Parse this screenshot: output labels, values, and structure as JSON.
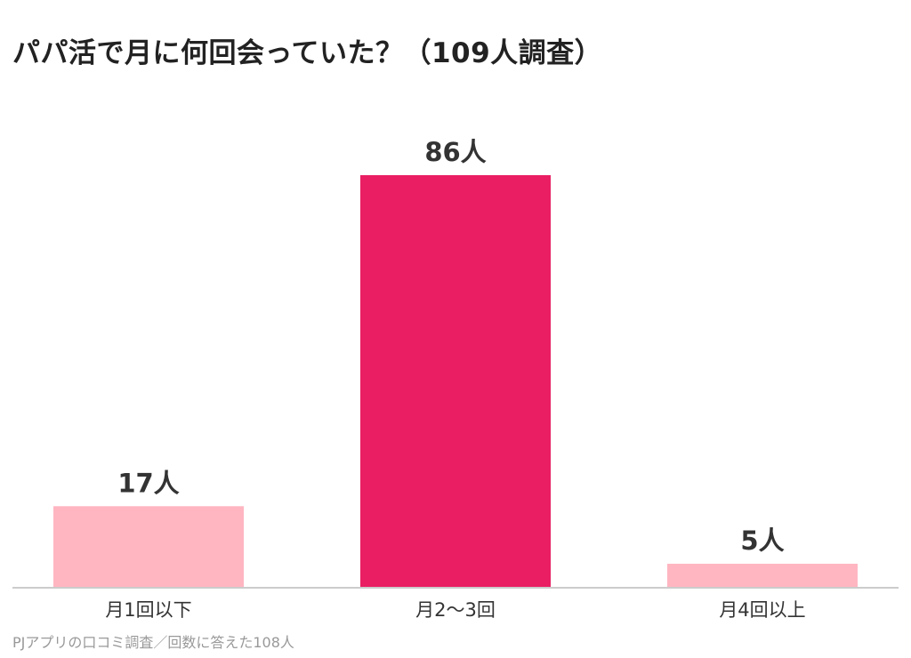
{
  "chart_data": {
    "type": "bar",
    "title": "パパ活で月に何回会っていた？（109人調査）",
    "categories": [
      "月1回以下",
      "月2〜3回",
      "月4回以上"
    ],
    "values": [
      17,
      86,
      5
    ],
    "value_labels": [
      "17人",
      "86人",
      "5人"
    ],
    "colors": [
      "#ffb6c1",
      "#e91e63",
      "#ffb6c1"
    ],
    "ylim": [
      0,
      86
    ],
    "grid": false,
    "legend": "none",
    "xlabel": "",
    "ylabel": ""
  },
  "footnote": "PJアプリの口コミ調査／回数に答えた108人",
  "colors": {
    "highlight": "#e91e63",
    "muted": "#ffb6c1",
    "axis": "#cccccc"
  }
}
